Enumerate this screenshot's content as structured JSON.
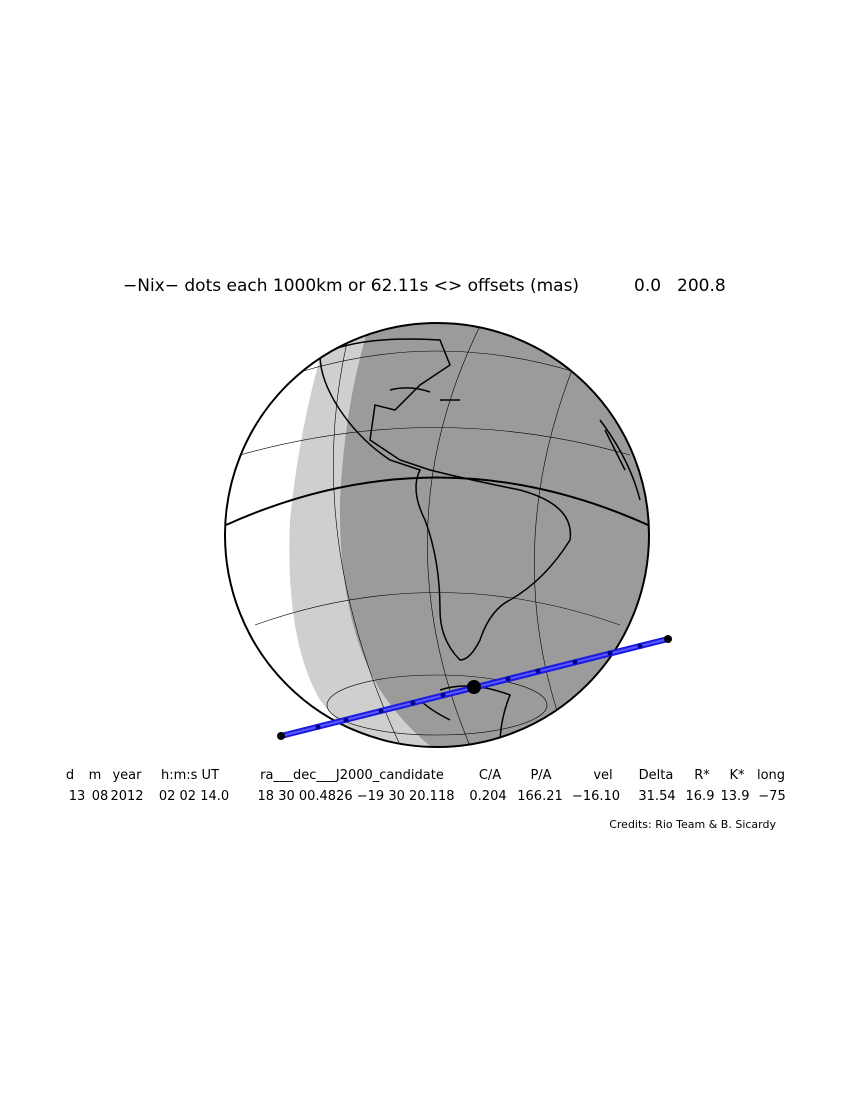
{
  "title": {
    "label": "−Nix− dots each 1000km or 62.11s <> offsets (mas)",
    "offset_ra": "0.0",
    "offset_dec": "200.8"
  },
  "table": {
    "header": [
      "d",
      "m",
      "year",
      "h:m:s UT",
      "ra___dec___J2000_candidate",
      "C/A",
      "P/A",
      "vel",
      "Delta",
      "R*",
      "K*",
      "long"
    ],
    "values": [
      "13",
      "08",
      "2012",
      "02 02 14.0",
      "18 30 00.4826 −19 30 20.118",
      "0.204",
      "166.21",
      "−16.10",
      "31.54",
      "16.9",
      "13.9",
      "−75"
    ]
  },
  "credits": "Credits: Rio Team & B. Sicardy"
}
